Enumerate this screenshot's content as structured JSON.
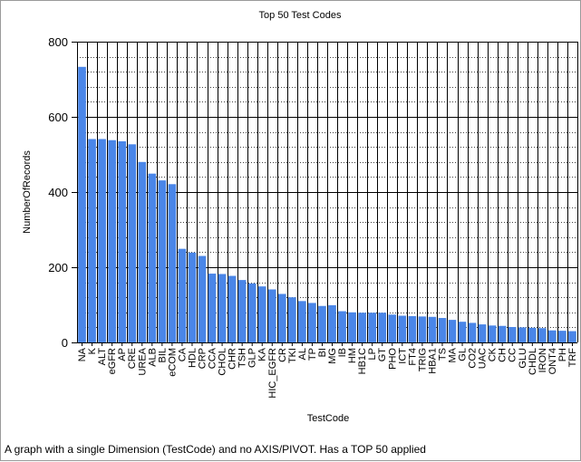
{
  "caption": "A graph with a single Dimension (TestCode) and no AXIS/PIVOT.  Has a TOP 50 applied",
  "chart_data": {
    "type": "bar",
    "title": "Top 50 Test Codes",
    "xlabel": "TestCode",
    "ylabel": "NumberOfRecords",
    "ylim": [
      0,
      800
    ],
    "yticks": [
      0,
      200,
      400,
      600,
      800
    ],
    "grid": true,
    "bar_color": "#4a86e8",
    "categories": [
      "NA",
      "K",
      "ALT",
      "eGFR",
      "AP",
      "CRE",
      "UREA",
      "ALB",
      "BIL",
      "eCOM",
      "CA",
      "HDL",
      "CRP",
      "CCA",
      "CHOL",
      "CHR",
      "TSH",
      "GLP",
      "KA",
      "HIC_EGFR",
      "CR",
      "TKI",
      "AL",
      "TP",
      "BI",
      "MG",
      "IB",
      "HM",
      "HB1C",
      "LP",
      "GT",
      "PHO",
      "ICT",
      "FT4",
      "TRIG",
      "HBA1",
      "TS",
      "MA",
      "GL",
      "CO2",
      "UAC",
      "CK",
      "CH",
      "CC",
      "GLU",
      "CHDL",
      "IRON",
      "ONT4",
      "PH",
      "TRF"
    ],
    "values": [
      733,
      541,
      541,
      538,
      535,
      527,
      480,
      449,
      431,
      421,
      249,
      239,
      230,
      183,
      182,
      177,
      166,
      157,
      149,
      141,
      129,
      120,
      110,
      105,
      97,
      99,
      83,
      80,
      79,
      79,
      79,
      74,
      71,
      70,
      69,
      68,
      65,
      60,
      55,
      52,
      48,
      45,
      44,
      41,
      40,
      39,
      38,
      32,
      31,
      30
    ]
  }
}
